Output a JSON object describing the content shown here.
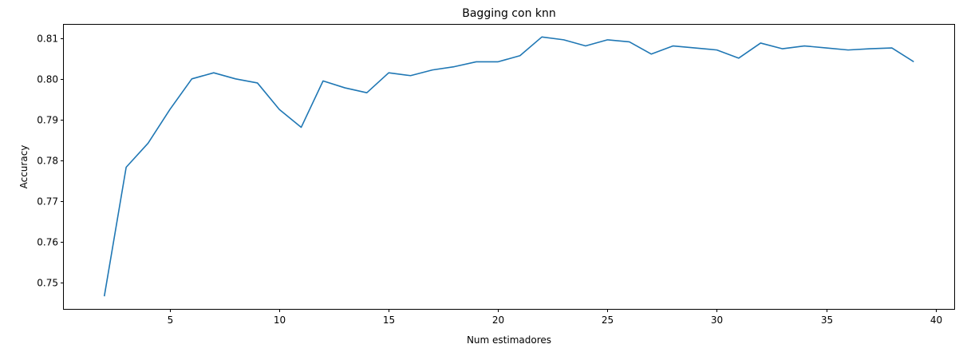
{
  "chart_data": {
    "type": "line",
    "title": "Bagging con knn",
    "xlabel": "Num estimadores",
    "ylabel": "Accuracy",
    "xlim": [
      0.15,
      40.85
    ],
    "ylim": [
      0.7435,
      0.8133
    ],
    "xticks": [
      5,
      10,
      15,
      20,
      25,
      30,
      35,
      40
    ],
    "xtick_labels": [
      "5",
      "10",
      "15",
      "20",
      "25",
      "30",
      "35",
      "40"
    ],
    "yticks": [
      0.75,
      0.76,
      0.77,
      0.78,
      0.79,
      0.8,
      0.81
    ],
    "ytick_labels": [
      "0.75",
      "0.76",
      "0.77",
      "0.78",
      "0.79",
      "0.80",
      "0.81"
    ],
    "grid": false,
    "line_color": "#1f77b4",
    "series": [
      {
        "x": [
          2,
          3,
          4,
          5,
          6,
          7,
          8,
          9,
          10,
          11,
          12,
          13,
          14,
          15,
          16,
          17,
          18,
          19,
          20,
          21,
          22,
          23,
          24,
          25,
          26,
          27,
          28,
          29,
          30,
          31,
          32,
          33,
          34,
          35,
          36,
          37,
          38,
          39
        ],
        "values": [
          0.7466,
          0.7783,
          0.7842,
          0.7925,
          0.8,
          0.8015,
          0.8,
          0.799,
          0.7925,
          0.7881,
          0.7995,
          0.7978,
          0.7966,
          0.8015,
          0.8008,
          0.8022,
          0.803,
          0.8042,
          0.8042,
          0.8057,
          0.8103,
          0.8096,
          0.8081,
          0.8096,
          0.8091,
          0.8061,
          0.8081,
          0.8076,
          0.8071,
          0.8051,
          0.8088,
          0.8074,
          0.8081,
          0.8076,
          0.8071,
          0.8074,
          0.8076,
          0.8042
        ]
      }
    ]
  }
}
